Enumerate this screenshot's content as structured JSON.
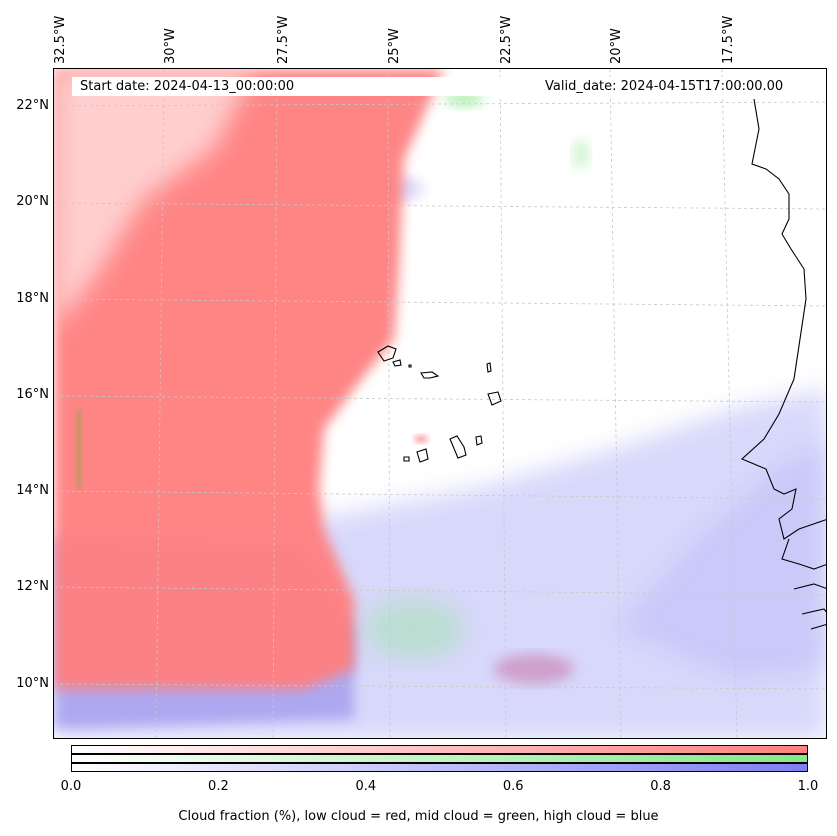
{
  "map": {
    "start_label": "Start date: 2024-04-13_00:00:00",
    "valid_label": "Valid_date: 2024-04-15T17:00:00.00",
    "lon_labels": [
      "32.5°W",
      "30°W",
      "27.5°W",
      "25°W",
      "22.5°W",
      "20°W",
      "17.5°W"
    ],
    "lat_labels": [
      "22°N",
      "20°N",
      "18°N",
      "16°N",
      "14°N",
      "12°N",
      "10°N"
    ]
  },
  "colors": {
    "low_cloud": "#ff7f7f",
    "mid_cloud": "#86e886",
    "high_cloud": "#7f7ff2",
    "grid": "#c8c8c8",
    "coast": "#000000"
  },
  "colorbar": {
    "ticks": [
      "0.0",
      "0.2",
      "0.4",
      "0.6",
      "0.8",
      "1.0"
    ],
    "caption": "Cloud fraction (%), low cloud = red, mid cloud = green, high cloud = blue",
    "min": 0.0,
    "max": 1.0
  }
}
